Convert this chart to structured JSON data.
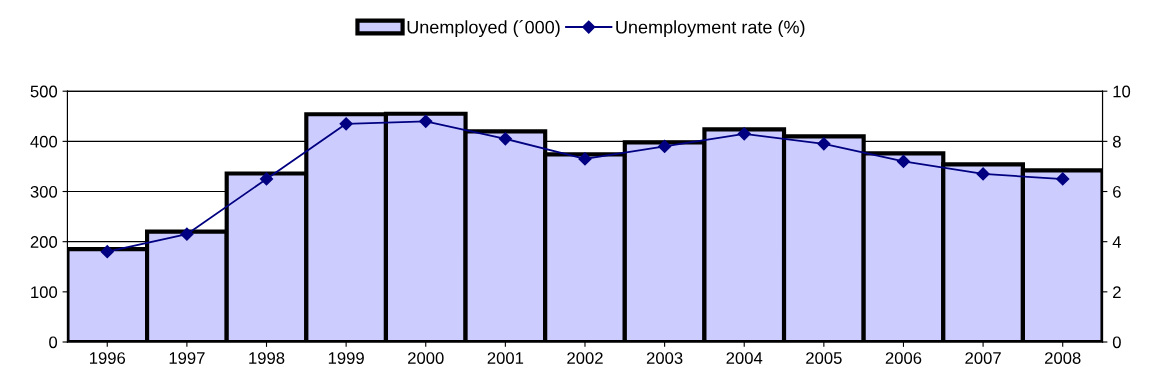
{
  "chart_data": {
    "type": "bar",
    "categories": [
      "1996",
      "1997",
      "1998",
      "1999",
      "2000",
      "2001",
      "2002",
      "2003",
      "2004",
      "2005",
      "2006",
      "2007",
      "2008"
    ],
    "series": [
      {
        "name": "Unemployed (´000)",
        "color": "#ccccff",
        "values": [
          185,
          220,
          336,
          454,
          455,
          420,
          374,
          398,
          424,
          410,
          376,
          354,
          342
        ]
      },
      {
        "name": "Unemployment rate (%)",
        "type": "line",
        "axis": "y2",
        "color": "#000080",
        "marker": "diamond",
        "values": [
          3.6,
          4.3,
          6.5,
          8.7,
          8.8,
          8.1,
          7.3,
          7.8,
          8.3,
          7.9,
          7.2,
          6.7,
          6.5
        ]
      }
    ],
    "ylim": [
      0,
      500
    ],
    "yticks": [
      0,
      100,
      200,
      300,
      400,
      500
    ],
    "y2lim": [
      0,
      10
    ],
    "y2ticks": [
      0,
      2,
      4,
      6,
      8,
      10
    ],
    "grid": "y",
    "legend": "top"
  }
}
